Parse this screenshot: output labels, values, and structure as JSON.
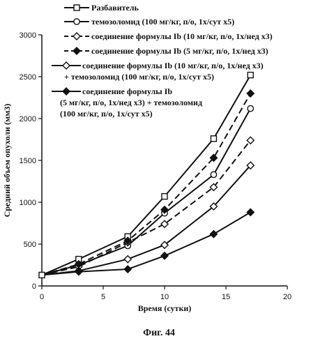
{
  "figure": {
    "caption": "Фиг. 44"
  },
  "chart_data": {
    "type": "line",
    "xlabel": "Время (сутки)",
    "ylabel": "Средний объем опухоли (мм3)",
    "xlim": [
      0,
      20
    ],
    "ylim": [
      0,
      3000
    ],
    "xticks": [
      0,
      5,
      10,
      15,
      20
    ],
    "yticks": [
      0,
      500,
      1000,
      1500,
      2000,
      2500,
      3000
    ],
    "grid": false,
    "legend_position": "top-left",
    "series": [
      {
        "name": "Разбавитель",
        "marker": "square-open",
        "line": "solid",
        "legend_lines": [
          "Разбавитель"
        ],
        "x": [
          0,
          3,
          7,
          10,
          14,
          17
        ],
        "y": [
          130,
          320,
          590,
          1070,
          1760,
          2520
        ]
      },
      {
        "name": "темозоломид (100 мг/кг, п/о, 1х/сут х5)",
        "marker": "circle-open",
        "line": "solid",
        "legend_lines": [
          "темозоломид (100 мг/кг, п/о, 1х/сут х5)"
        ],
        "x": [
          0,
          3,
          7,
          10,
          14,
          17
        ],
        "y": [
          130,
          250,
          480,
          870,
          1330,
          2120
        ]
      },
      {
        "name": "соединение формулы Ib (10 мг/кг, п/о, 1х/нед х3)",
        "marker": "diamond-open",
        "line": "dashed",
        "legend_lines": [
          "соединение формулы Ib (10 мг/кг, п/о, 1х/нед х3)"
        ],
        "x": [
          0,
          3,
          7,
          10,
          14,
          17
        ],
        "y": [
          130,
          230,
          520,
          740,
          1180,
          1740
        ]
      },
      {
        "name": "соединение формулы Ib (5 мг/кг, п/о, 1х/нед х3)",
        "marker": "diamond-filled",
        "line": "dashed",
        "legend_lines": [
          "соединение формулы Ib (5 мг/кг, п/о, 1х/нед х3)"
        ],
        "x": [
          0,
          3,
          7,
          10,
          14,
          17
        ],
        "y": [
          130,
          260,
          540,
          910,
          1530,
          2300
        ]
      },
      {
        "name": "соединение формулы Ib (10 мг/кг, п/о, 1х/нед х3) + темозоломид (100 мг/кг, п/о, 1х/сут х5)",
        "marker": "diamond-open",
        "line": "solid",
        "legend_lines": [
          "соединение формулы Ib (10 мг/кг, п/о, 1х/нед х3)",
          "+ темозоломид (100 мг/кг, п/о, 1х/сут х5)"
        ],
        "x": [
          0,
          3,
          7,
          10,
          14,
          17
        ],
        "y": [
          130,
          180,
          320,
          490,
          950,
          1440
        ]
      },
      {
        "name": "соединение формулы Ib (5 мг/кг, п/о, 1х/нед х3) + темозоломид (100 мг/кг, п/о, 1х/сут х5)",
        "marker": "diamond-filled",
        "line": "solid",
        "legend_lines": [
          "соединение формулы Ib",
          "(5 мг/кг, п/о, 1х/нед х3) + темозоломид",
          "(100 мг/кг, п/о, 1х/сут х5)"
        ],
        "x": [
          0,
          3,
          7,
          10,
          14,
          17
        ],
        "y": [
          130,
          170,
          200,
          360,
          620,
          880
        ]
      }
    ]
  }
}
